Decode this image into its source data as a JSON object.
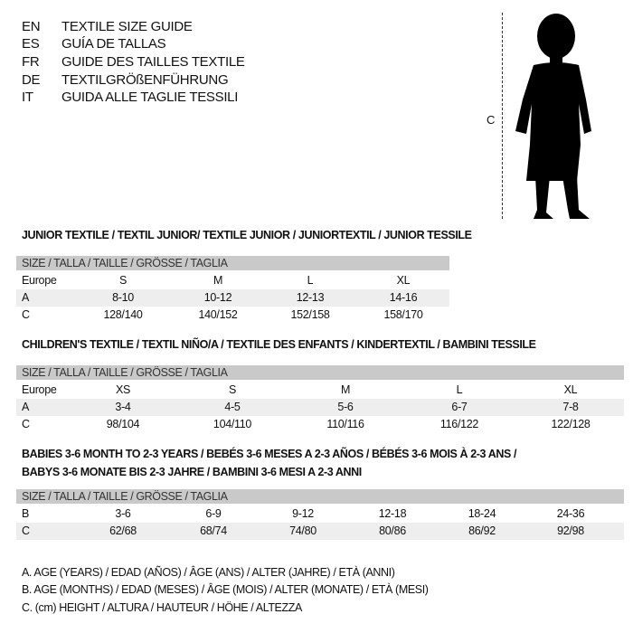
{
  "languages": [
    {
      "code": "EN",
      "text": "TEXTILE SIZE GUIDE"
    },
    {
      "code": "ES",
      "text": "GUÍA DE TALLAS"
    },
    {
      "code": "FR",
      "text": "GUIDE DES TAILLES TEXTILE"
    },
    {
      "code": "DE",
      "text": "TEXTILGRÖßENFÜHRUNG"
    },
    {
      "code": "IT",
      "text": "GUIDA ALLE TAGLIE TESSILI"
    }
  ],
  "figure": {
    "measure_label": "C",
    "icon": "child-silhouette-icon"
  },
  "size_header": "SIZE / TALLA / TAILLE / GRÖSSE / TAGLIA",
  "junior": {
    "title": "JUNIOR TEXTILE / TEXTIL JUNIOR/ TEXTILE JUNIOR / JUNIORTEXTIL / JUNIOR TESSILE",
    "rows": [
      {
        "label": "Europe",
        "values": [
          "S",
          "M",
          "L",
          "XL"
        ]
      },
      {
        "label": "A",
        "values": [
          "8-10",
          "10-12",
          "12-13",
          "14-16"
        ]
      },
      {
        "label": "C",
        "values": [
          "128/140",
          "140/152",
          "152/158",
          "158/170"
        ]
      }
    ]
  },
  "children": {
    "title": "CHILDREN'S TEXTILE / TEXTIL NIÑO/A / TEXTILE DES ENFANTS / KINDERTEXTIL / BAMBINI TESSILE",
    "rows": [
      {
        "label": "Europe",
        "values": [
          "XS",
          "S",
          "M",
          "L",
          "XL"
        ]
      },
      {
        "label": "A",
        "values": [
          "3-4",
          "4-5",
          "5-6",
          "6-7",
          "7-8"
        ]
      },
      {
        "label": "C",
        "values": [
          "98/104",
          "104/110",
          "110/116",
          "116/122",
          "122/128"
        ]
      }
    ]
  },
  "babies": {
    "title_line1": "BABIES 3-6 MONTH TO 2-3 YEARS / BEBÉS 3-6 MESES A 2-3 AÑOS / BÉBÉS 3-6 MOIS À 2-3 ANS /",
    "title_line2": "BABYS 3-6 MONATE BIS 2-3 JAHRE / BAMBINI 3-6 MESI A 2-3 ANNI",
    "rows": [
      {
        "label": "B",
        "values": [
          "3-6",
          "6-9",
          "9-12",
          "12-18",
          "18-24",
          "24-36"
        ]
      },
      {
        "label": "C",
        "values": [
          "62/68",
          "68/74",
          "74/80",
          "80/86",
          "86/92",
          "92/98"
        ]
      }
    ]
  },
  "notes": [
    "A. AGE (YEARS) / EDAD (AÑOS) / ÂGE (ANS) / ALTER (JAHRE) / ETÀ (ANNI)",
    "B. AGE (MONTHS) / EDAD (MESES) / ÂGE (MOIS) / ALTER (MONATE) / ETÀ (MESI)",
    "C. (cm) HEIGHT / ALTURA / HAUTEUR / HÖHE / ALTEZZA"
  ]
}
